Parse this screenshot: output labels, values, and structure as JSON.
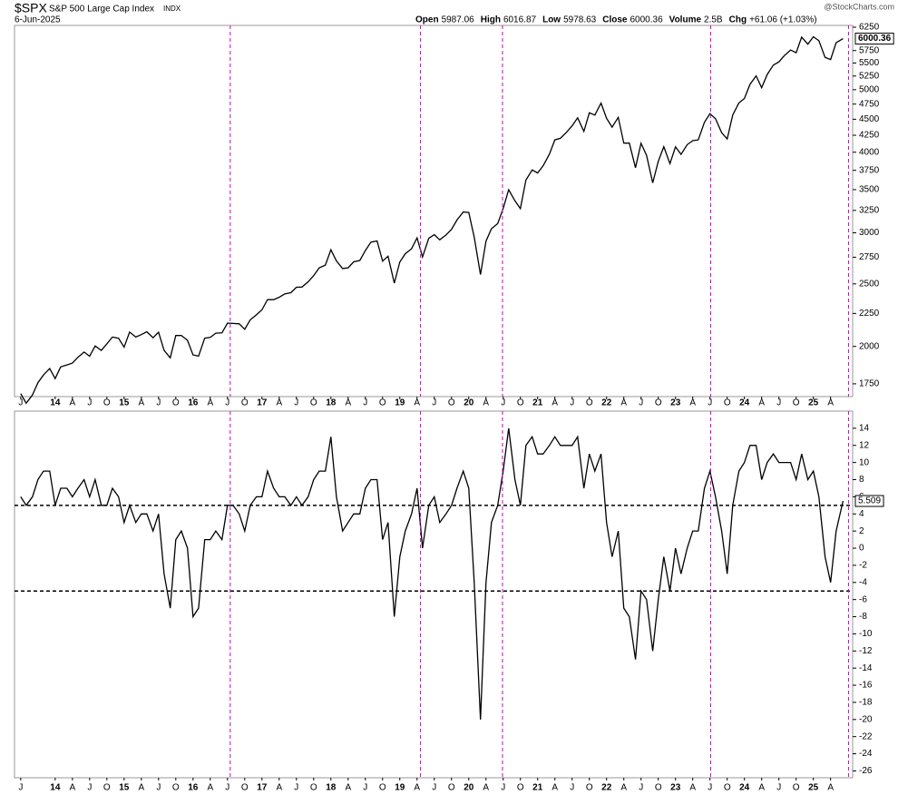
{
  "chart_data": [
    {
      "type": "line",
      "title": "$SPX",
      "subtitle": "S&P 500 Large Cap Index",
      "exchange": "INDX",
      "date": "6-Jun-2025",
      "source": "@StockCharts.com",
      "stats": [
        {
          "label": "Open",
          "value": 5987.06
        },
        {
          "label": "High",
          "value": 6016.87
        },
        {
          "label": "Low",
          "value": 5978.63
        },
        {
          "label": "Close",
          "value": 6000.36
        },
        {
          "label": "Volume",
          "value": "2.5B"
        },
        {
          "label": "Chg",
          "value": "+61.06 (+1.03%)"
        }
      ],
      "color": "#000000",
      "yscale": "log",
      "xlim": [
        2013.41,
        2025.57
      ],
      "ylim": [
        1672,
        6290
      ],
      "yticks": [
        1750,
        2000,
        2250,
        2500,
        2750,
        3000,
        3250,
        3500,
        3750,
        4000,
        4250,
        4500,
        4750,
        5000,
        5250,
        5500,
        5750,
        6250
      ],
      "vlines": [
        2016.54,
        2019.3,
        2020.49,
        2023.51,
        2025.51
      ],
      "vline_color": "#cc00cc",
      "xticks": [
        {
          "value": 2013.5,
          "label": "J"
        },
        {
          "value": 2014,
          "label": "14"
        },
        {
          "value": 2014.25,
          "label": "A"
        },
        {
          "value": 2014.5,
          "label": "J"
        },
        {
          "value": 2014.75,
          "label": "O"
        },
        {
          "value": 2015,
          "label": "15"
        },
        {
          "value": 2015.25,
          "label": "A"
        },
        {
          "value": 2015.5,
          "label": "J"
        },
        {
          "value": 2015.75,
          "label": "O"
        },
        {
          "value": 2016,
          "label": "16"
        },
        {
          "value": 2016.25,
          "label": "A"
        },
        {
          "value": 2016.5,
          "label": "J"
        },
        {
          "value": 2016.75,
          "label": "O"
        },
        {
          "value": 2017,
          "label": "17"
        },
        {
          "value": 2017.25,
          "label": "A"
        },
        {
          "value": 2017.5,
          "label": "J"
        },
        {
          "value": 2017.75,
          "label": "O"
        },
        {
          "value": 2018,
          "label": "18"
        },
        {
          "value": 2018.25,
          "label": "A"
        },
        {
          "value": 2018.5,
          "label": "J"
        },
        {
          "value": 2018.75,
          "label": "O"
        },
        {
          "value": 2019,
          "label": "19"
        },
        {
          "value": 2019.25,
          "label": "A"
        },
        {
          "value": 2019.5,
          "label": "J"
        },
        {
          "value": 2019.75,
          "label": "O"
        },
        {
          "value": 2020,
          "label": "20"
        },
        {
          "value": 2020.25,
          "label": "A"
        },
        {
          "value": 2020.5,
          "label": "J"
        },
        {
          "value": 2020.75,
          "label": "O"
        },
        {
          "value": 2021,
          "label": "21"
        },
        {
          "value": 2021.25,
          "label": "A"
        },
        {
          "value": 2021.5,
          "label": "J"
        },
        {
          "value": 2021.75,
          "label": "O"
        },
        {
          "value": 2022,
          "label": "22"
        },
        {
          "value": 2022.25,
          "label": "A"
        },
        {
          "value": 2022.5,
          "label": "J"
        },
        {
          "value": 2022.75,
          "label": "O"
        },
        {
          "value": 2023,
          "label": "23"
        },
        {
          "value": 2023.25,
          "label": "A"
        },
        {
          "value": 2023.5,
          "label": "J"
        },
        {
          "value": 2023.75,
          "label": "O"
        },
        {
          "value": 2024,
          "label": "24"
        },
        {
          "value": 2024.25,
          "label": "A"
        },
        {
          "value": 2024.5,
          "label": "J"
        },
        {
          "value": 2024.75,
          "label": "O"
        },
        {
          "value": 2025,
          "label": "25"
        },
        {
          "value": 2025.25,
          "label": "A"
        }
      ],
      "x": [
        2013.5,
        2013.58,
        2013.67,
        2013.75,
        2013.83,
        2013.92,
        2014,
        2014.08,
        2014.17,
        2014.25,
        2014.33,
        2014.42,
        2014.5,
        2014.58,
        2014.67,
        2014.75,
        2014.83,
        2014.92,
        2015,
        2015.08,
        2015.17,
        2015.25,
        2015.33,
        2015.42,
        2015.5,
        2015.58,
        2015.67,
        2015.75,
        2015.83,
        2015.92,
        2016,
        2016.08,
        2016.17,
        2016.25,
        2016.33,
        2016.42,
        2016.5,
        2016.58,
        2016.67,
        2016.75,
        2016.83,
        2016.92,
        2017,
        2017.08,
        2017.17,
        2017.25,
        2017.33,
        2017.42,
        2017.5,
        2017.58,
        2017.67,
        2017.75,
        2017.83,
        2017.92,
        2018,
        2018.08,
        2018.17,
        2018.25,
        2018.33,
        2018.42,
        2018.5,
        2018.58,
        2018.67,
        2018.75,
        2018.83,
        2018.92,
        2019,
        2019.08,
        2019.17,
        2019.25,
        2019.33,
        2019.42,
        2019.5,
        2019.58,
        2019.67,
        2019.75,
        2019.83,
        2019.92,
        2020,
        2020.08,
        2020.17,
        2020.25,
        2020.33,
        2020.42,
        2020.5,
        2020.58,
        2020.67,
        2020.75,
        2020.83,
        2020.92,
        2021,
        2021.08,
        2021.17,
        2021.25,
        2021.33,
        2021.42,
        2021.5,
        2021.58,
        2021.67,
        2021.75,
        2021.83,
        2021.92,
        2022,
        2022.08,
        2022.17,
        2022.25,
        2022.33,
        2022.42,
        2022.5,
        2022.58,
        2022.67,
        2022.75,
        2022.83,
        2022.92,
        2023,
        2023.08,
        2023.17,
        2023.25,
        2023.33,
        2023.42,
        2023.5,
        2023.58,
        2023.67,
        2023.75,
        2023.83,
        2023.92,
        2024,
        2024.08,
        2024.17,
        2024.25,
        2024.33,
        2024.42,
        2024.5,
        2024.58,
        2024.67,
        2024.75,
        2024.83,
        2024.92,
        2025,
        2025.08,
        2025.17,
        2025.25,
        2025.33,
        2025.43
      ],
      "values": [
        1690,
        1633,
        1682,
        1757,
        1806,
        1848,
        1783,
        1859,
        1872,
        1884,
        1924,
        1960,
        1931,
        2003,
        1972,
        2018,
        2068,
        2059,
        1995,
        2105,
        2068,
        2086,
        2107,
        2063,
        2104,
        1972,
        1920,
        2079,
        2080,
        2044,
        1940,
        1932,
        2060,
        2065,
        2097,
        2099,
        2174,
        2171,
        2168,
        2126,
        2199,
        2239,
        2279,
        2364,
        2363,
        2384,
        2412,
        2423,
        2470,
        2472,
        2519,
        2575,
        2648,
        2674,
        2824,
        2714,
        2641,
        2648,
        2705,
        2718,
        2816,
        2902,
        2914,
        2712,
        2760,
        2507,
        2704,
        2784,
        2834,
        2946,
        2752,
        2942,
        2980,
        2926,
        2977,
        3038,
        3141,
        3231,
        3226,
        2954,
        2585,
        2912,
        3044,
        3100,
        3271,
        3500,
        3363,
        3270,
        3622,
        3756,
        3714,
        3811,
        3973,
        4181,
        4204,
        4298,
        4395,
        4523,
        4308,
        4605,
        4567,
        4766,
        4516,
        4374,
        4530,
        4132,
        4132,
        3785,
        4130,
        3955,
        3586,
        3872,
        4080,
        3840,
        4077,
        3970,
        4109,
        4169,
        4180,
        4450,
        4589,
        4508,
        4288,
        4194,
        4568,
        4770,
        4846,
        5096,
        5254,
        5036,
        5278,
        5460,
        5522,
        5648,
        5762,
        5705,
        6032,
        5882,
        6040,
        5955,
        5612,
        5569,
        5912,
        6000.36
      ]
    },
    {
      "type": "line",
      "color": "#000000",
      "xlim": [
        2013.41,
        2025.57
      ],
      "ylim": [
        -26.8,
        16
      ],
      "yticks": [
        14,
        12,
        10,
        8,
        6,
        4,
        2,
        0,
        -2,
        -4,
        -6,
        -8,
        -10,
        -12,
        -14,
        -16,
        -18,
        -20,
        -22,
        -24,
        -26
      ],
      "hlines": [
        5,
        -5
      ],
      "xticks": [
        {
          "value": 2013.5,
          "label": "J"
        },
        {
          "value": 2014,
          "label": "14"
        },
        {
          "value": 2014.25,
          "label": "A"
        },
        {
          "value": 2014.5,
          "label": "J"
        },
        {
          "value": 2014.75,
          "label": "O"
        },
        {
          "value": 2015,
          "label": "15"
        },
        {
          "value": 2015.25,
          "label": "A"
        },
        {
          "value": 2015.5,
          "label": "J"
        },
        {
          "value": 2015.75,
          "label": "O"
        },
        {
          "value": 2016,
          "label": "16"
        },
        {
          "value": 2016.25,
          "label": "A"
        },
        {
          "value": 2016.5,
          "label": "J"
        },
        {
          "value": 2016.75,
          "label": "O"
        },
        {
          "value": 2017,
          "label": "17"
        },
        {
          "value": 2017.25,
          "label": "A"
        },
        {
          "value": 2017.5,
          "label": "J"
        },
        {
          "value": 2017.75,
          "label": "O"
        },
        {
          "value": 2018,
          "label": "18"
        },
        {
          "value": 2018.25,
          "label": "A"
        },
        {
          "value": 2018.5,
          "label": "J"
        },
        {
          "value": 2018.75,
          "label": "O"
        },
        {
          "value": 2019,
          "label": "19"
        },
        {
          "value": 2019.25,
          "label": "A"
        },
        {
          "value": 2019.5,
          "label": "J"
        },
        {
          "value": 2019.75,
          "label": "O"
        },
        {
          "value": 2020,
          "label": "20"
        },
        {
          "value": 2020.25,
          "label": "A"
        },
        {
          "value": 2020.5,
          "label": "J"
        },
        {
          "value": 2020.75,
          "label": "O"
        },
        {
          "value": 2021,
          "label": "21"
        },
        {
          "value": 2021.25,
          "label": "A"
        },
        {
          "value": 2021.5,
          "label": "J"
        },
        {
          "value": 2021.75,
          "label": "O"
        },
        {
          "value": 2022,
          "label": "22"
        },
        {
          "value": 2022.25,
          "label": "A"
        },
        {
          "value": 2022.5,
          "label": "J"
        },
        {
          "value": 2022.75,
          "label": "O"
        },
        {
          "value": 2023,
          "label": "23"
        },
        {
          "value": 2023.25,
          "label": "A"
        },
        {
          "value": 2023.5,
          "label": "J"
        },
        {
          "value": 2023.75,
          "label": "O"
        },
        {
          "value": 2024,
          "label": "24"
        },
        {
          "value": 2024.25,
          "label": "A"
        },
        {
          "value": 2024.5,
          "label": "J"
        },
        {
          "value": 2024.75,
          "label": "O"
        },
        {
          "value": 2025,
          "label": "25"
        },
        {
          "value": 2025.25,
          "label": "A"
        }
      ],
      "x": [
        2013.5,
        2013.58,
        2013.67,
        2013.75,
        2013.83,
        2013.92,
        2014,
        2014.08,
        2014.17,
        2014.25,
        2014.33,
        2014.42,
        2014.5,
        2014.58,
        2014.67,
        2014.75,
        2014.83,
        2014.92,
        2015,
        2015.08,
        2015.17,
        2015.25,
        2015.33,
        2015.42,
        2015.5,
        2015.58,
        2015.67,
        2015.75,
        2015.83,
        2015.92,
        2016,
        2016.08,
        2016.17,
        2016.25,
        2016.33,
        2016.42,
        2016.5,
        2016.58,
        2016.67,
        2016.75,
        2016.83,
        2016.92,
        2017,
        2017.08,
        2017.17,
        2017.25,
        2017.33,
        2017.42,
        2017.5,
        2017.58,
        2017.67,
        2017.75,
        2017.83,
        2017.92,
        2018,
        2018.08,
        2018.17,
        2018.25,
        2018.33,
        2018.42,
        2018.5,
        2018.58,
        2018.67,
        2018.75,
        2018.83,
        2018.92,
        2019,
        2019.08,
        2019.17,
        2019.25,
        2019.33,
        2019.42,
        2019.5,
        2019.58,
        2019.67,
        2019.75,
        2019.83,
        2019.92,
        2020,
        2020.08,
        2020.17,
        2020.25,
        2020.33,
        2020.42,
        2020.5,
        2020.58,
        2020.67,
        2020.75,
        2020.83,
        2020.92,
        2021,
        2021.08,
        2021.17,
        2021.25,
        2021.33,
        2021.42,
        2021.5,
        2021.58,
        2021.67,
        2021.75,
        2021.83,
        2021.92,
        2022,
        2022.08,
        2022.17,
        2022.25,
        2022.33,
        2022.42,
        2022.5,
        2022.58,
        2022.67,
        2022.75,
        2022.83,
        2022.92,
        2023,
        2023.08,
        2023.17,
        2023.25,
        2023.33,
        2023.42,
        2023.5,
        2023.58,
        2023.67,
        2023.75,
        2023.83,
        2023.92,
        2024,
        2024.08,
        2024.17,
        2024.25,
        2024.33,
        2024.42,
        2024.5,
        2024.58,
        2024.67,
        2024.75,
        2024.83,
        2024.92,
        2025,
        2025.08,
        2025.17,
        2025.25,
        2025.33,
        2025.43
      ],
      "values": [
        6,
        5,
        6,
        8,
        9,
        9,
        5,
        7,
        7,
        6,
        7,
        8,
        6,
        8,
        5,
        5,
        7,
        6,
        3,
        5,
        3,
        4,
        4,
        2,
        4,
        -3,
        -7,
        1,
        2,
        0,
        -8,
        -7,
        1,
        1,
        2,
        1,
        5,
        5,
        4,
        2,
        5,
        6,
        6,
        9,
        7,
        6,
        6,
        5,
        6,
        5,
        6,
        8,
        9,
        9,
        13,
        6,
        2,
        3,
        4,
        4,
        7,
        8,
        8,
        1,
        3,
        -8,
        -1,
        2,
        4,
        7,
        0,
        5,
        6,
        3,
        4,
        5,
        7,
        9,
        7,
        -4,
        -20,
        -4,
        3,
        5,
        9,
        14,
        8,
        5,
        12,
        13,
        11,
        11,
        12,
        13,
        12,
        12,
        12,
        13,
        7,
        11,
        9,
        11,
        3,
        -1,
        2,
        -7,
        -8,
        -13,
        -5,
        -6,
        -12,
        -6,
        -1,
        -5,
        0,
        -3,
        0,
        2,
        2,
        7,
        9,
        6,
        2,
        -3,
        5,
        9,
        10,
        12,
        12,
        8,
        10,
        11,
        10,
        10,
        10,
        8,
        11,
        8,
        9,
        6,
        -1,
        -4,
        2,
        5.509
      ]
    }
  ]
}
